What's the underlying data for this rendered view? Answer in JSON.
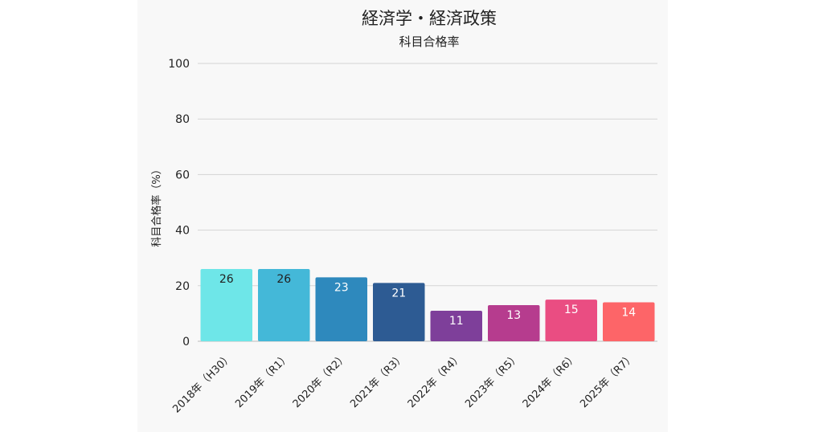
{
  "chart_data": {
    "type": "bar",
    "title": "経済学・経済政策",
    "subtitle": "科目合格率",
    "ylabel": "科目合格率（%）",
    "xlabel": "",
    "categories": [
      "2018年（H30）",
      "2019年（R1）",
      "2020年（R2）",
      "2021年（R3）",
      "2022年（R4）",
      "2023年（R5）",
      "2024年（R6）",
      "2025年（R7）"
    ],
    "values": [
      26,
      26,
      23,
      21,
      11,
      13,
      15,
      14
    ],
    "data_labels": [
      "26",
      "26",
      "23",
      "21",
      "11",
      "13",
      "15",
      "14"
    ],
    "bar_colors": [
      "#6ee6e8",
      "#44b8d8",
      "#2e89bd",
      "#2d5b93",
      "#7e3f9a",
      "#b63c8e",
      "#ea4d82",
      "#fd6568"
    ],
    "label_colors": [
      "#222222",
      "#222222",
      "#ffffff",
      "#ffffff",
      "#ffffff",
      "#ffffff",
      "#ffffff",
      "#ffffff"
    ],
    "ylim": [
      0,
      100
    ],
    "yticks": [
      0,
      20,
      40,
      60,
      80,
      100
    ],
    "grid": true,
    "legend": "none"
  }
}
